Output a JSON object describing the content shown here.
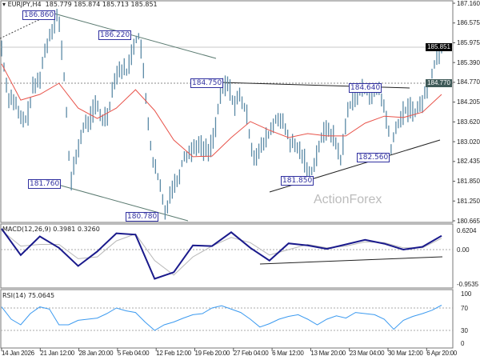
{
  "header": {
    "symbol": "EURJPY,H4",
    "ohlc": "185.779 185.874 185.713 185.851"
  },
  "watermark": "ActionForex",
  "colors": {
    "bars": "#5b8aa6",
    "ma": "#e8534a",
    "macd": "#1a1a8c",
    "signal": "#b8b8b8",
    "rsi": "#3b9af0",
    "label": "#3030a0"
  },
  "chart_data": [
    {
      "type": "bar",
      "panel": "price",
      "title": "EURJPY,H4",
      "ylim": [
        180.665,
        187.16
      ],
      "y_ticks": [
        "187.160",
        "186.575",
        "185.975",
        "185.390",
        "184.770",
        "184.205",
        "183.620",
        "183.020",
        "182.435",
        "181.850",
        "181.250",
        "180.665"
      ],
      "x_ticks": [
        "14 Jan 2026",
        "21 Jan 12:00",
        "28 Jan 20:00",
        "5 Feb 04:00",
        "12 Feb 12:00",
        "19 Feb 20:00",
        "27 Feb 04:00",
        "6 Mar 12:00",
        "13 Mar 20:00",
        "23 Mar 04:00",
        "30 Mar 12:00",
        "6 Apr 20:00"
      ],
      "closes": [
        185.82,
        184.39,
        184.27,
        183.68,
        183.68,
        184.63,
        184.87,
        185.82,
        186.42,
        186.86,
        184.87,
        181.76,
        182.72,
        183.44,
        183.68,
        184.15,
        183.68,
        183.91,
        184.99,
        185.23,
        185.11,
        185.94,
        186.22,
        184.15,
        182.48,
        181.88,
        180.9,
        181.65,
        181.88,
        182.6,
        182.72,
        182.96,
        182.84,
        182.72,
        183.44,
        184.63,
        184.75,
        184.15,
        184.39,
        183.79,
        182.6,
        182.72,
        183.08,
        183.44,
        183.79,
        183.44,
        182.96,
        182.84,
        182.6,
        181.95,
        182.6,
        183.2,
        183.44,
        183.08,
        182.48,
        183.91,
        184.39,
        184.51,
        184.63,
        184.39,
        184.63,
        183.91,
        182.84,
        183.56,
        183.91,
        184.03,
        183.91,
        184.27,
        184.75,
        185.47,
        185.85
      ],
      "moving_average": [
        185.35,
        184.27,
        184.44,
        184.77,
        184.03,
        183.72,
        184.03,
        184.58,
        183.96,
        183.08,
        182.58,
        182.6,
        183.15,
        183.63,
        183.37,
        183.15,
        183.27,
        183.2,
        183.2,
        183.58,
        183.79,
        183.75,
        183.91,
        184.44
      ],
      "swing_labels": [
        "186.860",
        "186.220",
        "184.750",
        "184.640",
        "182.560",
        "181.850",
        "181.760",
        "180.780"
      ],
      "current_price": "185.851",
      "level_line": "184.770"
    },
    {
      "type": "line",
      "panel": "macd",
      "title": "MACD(12,26,9) 0.3981 0.3260",
      "ylim": [
        -0.9535,
        0.6204
      ],
      "y_ticks": [
        "0.6204",
        "0.00",
        "-0.9535"
      ],
      "series": [
        {
          "values": [
            0.6,
            -0.15,
            0.38,
            0.05,
            -0.45,
            -0.05,
            0.47,
            0.43,
            -0.8,
            -0.62,
            0.12,
            0.1,
            0.5,
            0.05,
            -0.3,
            0.18,
            0.12,
            0.02,
            0.15,
            0.28,
            0.17,
            0.0,
            0.08,
            0.3981
          ]
        },
        {
          "values": [
            0.55,
            0.1,
            0.15,
            0.15,
            -0.25,
            -0.2,
            0.25,
            0.45,
            -0.3,
            -0.7,
            -0.2,
            0.1,
            0.35,
            0.2,
            -0.15,
            0.0,
            0.15,
            0.05,
            0.1,
            0.22,
            0.2,
            0.05,
            0.05,
            0.326
          ]
        }
      ]
    },
    {
      "type": "line",
      "panel": "rsi",
      "title": "RSI(14) 75.0645",
      "ylim": [
        0,
        100
      ],
      "y_ticks": [
        "100",
        "70",
        "30",
        "0"
      ],
      "levels": [
        70,
        30
      ],
      "values": [
        72,
        50,
        40,
        60,
        72,
        68,
        40,
        40,
        48,
        50,
        52,
        60,
        70,
        65,
        62,
        45,
        30,
        40,
        45,
        52,
        58,
        60,
        70,
        74,
        68,
        62,
        50,
        36,
        42,
        50,
        55,
        58,
        50,
        40,
        50,
        56,
        52,
        62,
        60,
        58,
        50,
        32,
        48,
        55,
        60,
        66,
        75.0645
      ]
    }
  ]
}
